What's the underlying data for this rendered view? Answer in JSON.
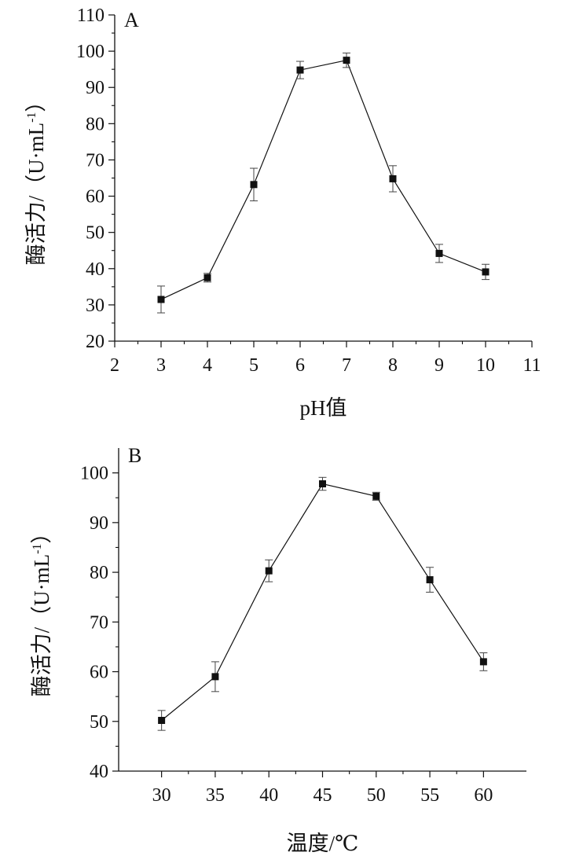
{
  "chart_data": [
    {
      "type": "line",
      "panel_label": "A",
      "xlabel": "pH值",
      "ylabel": "酶活力/（U·mL",
      "ylabel_sup": "-1",
      "ylabel_close": "）",
      "xlim": [
        2,
        11
      ],
      "ylim": [
        20,
        110
      ],
      "xticks": [
        2,
        3,
        4,
        5,
        6,
        7,
        8,
        9,
        10,
        11
      ],
      "yticks": [
        20,
        30,
        40,
        50,
        60,
        70,
        80,
        90,
        100,
        110
      ],
      "x": [
        3,
        4,
        5,
        6,
        7,
        8,
        9,
        10
      ],
      "y": [
        31.5,
        37.5,
        63.2,
        94.8,
        97.5,
        64.8,
        44.2,
        39.1
      ],
      "yerr": [
        3.7,
        1.2,
        4.5,
        2.4,
        2.0,
        3.6,
        2.5,
        2.1
      ],
      "grid": false,
      "color": "#111111"
    },
    {
      "type": "line",
      "panel_label": "B",
      "xlabel": "温度/℃",
      "ylabel": "酶活力/（U·mL",
      "ylabel_sup": "-1",
      "ylabel_close": "）",
      "xlim": [
        26,
        64
      ],
      "ylim": [
        40,
        105
      ],
      "xticks": [
        30,
        35,
        40,
        45,
        50,
        55,
        60
      ],
      "yticks": [
        40,
        50,
        60,
        70,
        80,
        90,
        100
      ],
      "x": [
        30,
        35,
        40,
        45,
        50,
        55,
        60
      ],
      "y": [
        50.2,
        59.0,
        80.3,
        97.8,
        95.3,
        78.5,
        62.0
      ],
      "yerr": [
        2.0,
        3.0,
        2.2,
        1.3,
        0.8,
        2.5,
        1.8
      ],
      "grid": false,
      "color": "#111111"
    }
  ]
}
